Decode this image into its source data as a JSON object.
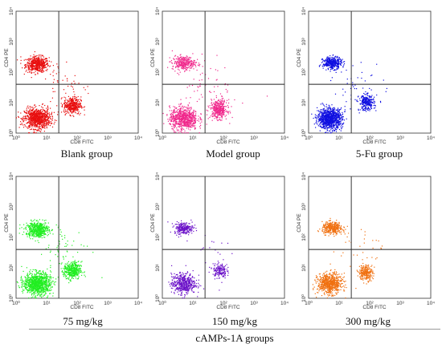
{
  "figure": {
    "group_label": "cAMPs-1A groups"
  },
  "chart_data": [
    {
      "type": "scatter",
      "caption": "Blank group",
      "color": "#e81010",
      "xlabel": "CD8 FITC",
      "ylabel": "CD4 PE",
      "log_scale": true,
      "xlim": [
        1,
        10000
      ],
      "ylim": [
        1,
        10000
      ],
      "x_tick_labels": [
        "10⁰",
        "10¹",
        "10²",
        "10³",
        "10⁴"
      ],
      "y_tick_labels": [
        "10⁰",
        "10¹",
        "10²",
        "10³",
        "10⁴"
      ],
      "gate": {
        "x": 25,
        "y": 40
      },
      "clusters": [
        {
          "label": "CD4+",
          "center": [
            5,
            180
          ],
          "spread": [
            2.2,
            1.7
          ],
          "count": 520
        },
        {
          "label": "double-negative",
          "center": [
            5,
            3
          ],
          "spread": [
            2.4,
            2.0
          ],
          "count": 900
        },
        {
          "label": "CD8+",
          "center": [
            70,
            8
          ],
          "spread": [
            1.8,
            1.8
          ],
          "count": 380
        },
        {
          "label": "scatter",
          "center": [
            40,
            40
          ],
          "spread": [
            6,
            6
          ],
          "count": 50
        }
      ]
    },
    {
      "type": "scatter",
      "caption": "Model group",
      "color": "#f0288c",
      "xlabel": "CD8 FITC",
      "ylabel": "CD4 PE",
      "log_scale": true,
      "xlim": [
        1,
        10000
      ],
      "ylim": [
        1,
        10000
      ],
      "x_tick_labels": [
        "10⁰",
        "10¹",
        "10²",
        "10³",
        "10⁴"
      ],
      "y_tick_labels": [
        "10⁰",
        "10¹",
        "10²",
        "10³",
        "10⁴"
      ],
      "gate": {
        "x": 25,
        "y": 40
      },
      "clusters": [
        {
          "label": "CD4+",
          "center": [
            5,
            200
          ],
          "spread": [
            2.2,
            1.6
          ],
          "count": 300
        },
        {
          "label": "double-negative",
          "center": [
            5,
            3
          ],
          "spread": [
            2.6,
            2.2
          ],
          "count": 750
        },
        {
          "label": "CD8+",
          "center": [
            70,
            6
          ],
          "spread": [
            1.8,
            1.9
          ],
          "count": 380
        },
        {
          "label": "scatter",
          "center": [
            40,
            40
          ],
          "spread": [
            6,
            6
          ],
          "count": 60
        }
      ]
    },
    {
      "type": "scatter",
      "caption": "5-Fu group",
      "color": "#1010e0",
      "xlabel": "CD8 FITC",
      "ylabel": "CD4 PE",
      "log_scale": true,
      "xlim": [
        1,
        10000
      ],
      "ylim": [
        1,
        10000
      ],
      "x_tick_labels": [
        "10⁰",
        "10¹",
        "10²",
        "10³",
        "10⁴"
      ],
      "y_tick_labels": [
        "10⁰",
        "10¹",
        "10²",
        "10³",
        "10⁴"
      ],
      "gate": {
        "x": 25,
        "y": 40
      },
      "clusters": [
        {
          "label": "CD4+",
          "center": [
            6,
            200
          ],
          "spread": [
            1.9,
            1.5
          ],
          "count": 380
        },
        {
          "label": "double-negative",
          "center": [
            5,
            3
          ],
          "spread": [
            2.3,
            2.0
          ],
          "count": 1000
        },
        {
          "label": "CD8+",
          "center": [
            80,
            10
          ],
          "spread": [
            1.7,
            1.7
          ],
          "count": 280
        },
        {
          "label": "scatter",
          "center": [
            40,
            40
          ],
          "spread": [
            6,
            6
          ],
          "count": 45
        }
      ]
    },
    {
      "type": "scatter",
      "caption": "75 mg/kg",
      "color": "#22ee22",
      "xlabel": "CD8 FITC",
      "ylabel": "CD4 PE",
      "log_scale": true,
      "xlim": [
        1,
        10000
      ],
      "ylim": [
        1,
        10000
      ],
      "x_tick_labels": [
        "10⁰",
        "10¹",
        "10²",
        "10³",
        "10⁴"
      ],
      "y_tick_labels": [
        "10⁰",
        "10¹",
        "10²",
        "10³",
        "10⁴"
      ],
      "gate": {
        "x": 25,
        "y": 40
      },
      "clusters": [
        {
          "label": "CD4+",
          "center": [
            5,
            180
          ],
          "spread": [
            2.2,
            1.7
          ],
          "count": 520
        },
        {
          "label": "double-negative",
          "center": [
            5,
            3
          ],
          "spread": [
            2.5,
            2.1
          ],
          "count": 1000
        },
        {
          "label": "CD8+",
          "center": [
            70,
            8
          ],
          "spread": [
            1.8,
            1.8
          ],
          "count": 400
        },
        {
          "label": "scatter",
          "center": [
            40,
            40
          ],
          "spread": [
            6,
            6
          ],
          "count": 60
        }
      ]
    },
    {
      "type": "scatter",
      "caption": "150 mg/kg",
      "color": "#6a10c8",
      "xlabel": "CD8 FITC",
      "ylabel": "CD4 PE",
      "log_scale": true,
      "xlim": [
        1,
        10000
      ],
      "ylim": [
        1,
        10000
      ],
      "x_tick_labels": [
        "10⁰",
        "10¹",
        "10²",
        "10³",
        "10⁴"
      ],
      "y_tick_labels": [
        "10⁰",
        "10¹",
        "10²",
        "10³",
        "10⁴"
      ],
      "gate": {
        "x": 25,
        "y": 40
      },
      "clusters": [
        {
          "label": "CD4+",
          "center": [
            5,
            200
          ],
          "spread": [
            1.9,
            1.5
          ],
          "count": 240
        },
        {
          "label": "double-negative",
          "center": [
            5,
            3
          ],
          "spread": [
            2.3,
            2.0
          ],
          "count": 480
        },
        {
          "label": "CD8+",
          "center": [
            75,
            8
          ],
          "spread": [
            1.6,
            1.7
          ],
          "count": 160
        },
        {
          "label": "scatter",
          "center": [
            40,
            40
          ],
          "spread": [
            6,
            6
          ],
          "count": 25
        }
      ]
    },
    {
      "type": "scatter",
      "caption": "300 mg/kg",
      "color": "#f07010",
      "xlabel": "CD8 FITC",
      "ylabel": "CD4 PE",
      "log_scale": true,
      "xlim": [
        1,
        10000
      ],
      "ylim": [
        1,
        10000
      ],
      "x_tick_labels": [
        "10⁰",
        "10¹",
        "10²",
        "10³",
        "10⁴"
      ],
      "y_tick_labels": [
        "10⁰",
        "10¹",
        "10²",
        "10³",
        "10⁴"
      ],
      "gate": {
        "x": 25,
        "y": 40
      },
      "clusters": [
        {
          "label": "CD4+",
          "center": [
            6,
            200
          ],
          "spread": [
            2.0,
            1.5
          ],
          "count": 360
        },
        {
          "label": "double-negative",
          "center": [
            5,
            3
          ],
          "spread": [
            2.3,
            2.0
          ],
          "count": 680
        },
        {
          "label": "CD8+",
          "center": [
            75,
            7
          ],
          "spread": [
            1.6,
            1.7
          ],
          "count": 240
        },
        {
          "label": "scatter",
          "center": [
            40,
            40
          ],
          "spread": [
            6,
            6
          ],
          "count": 35
        }
      ]
    }
  ]
}
